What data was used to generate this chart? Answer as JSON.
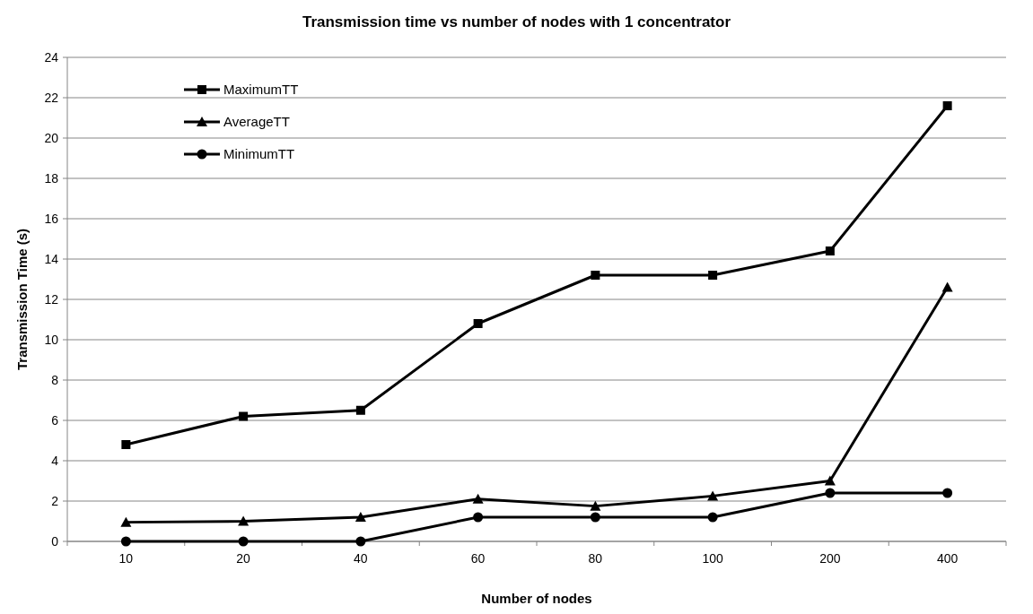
{
  "chart_data": {
    "type": "line",
    "title": "Transmission time vs number of nodes with 1 concentrator",
    "xlabel": "Number of nodes",
    "ylabel": "Transmission Time (s)",
    "categories": [
      "10",
      "20",
      "40",
      "60",
      "80",
      "100",
      "200",
      "400"
    ],
    "series": [
      {
        "name": "MaximumTT",
        "color": "#000000",
        "marker": "square",
        "values": [
          4.8,
          6.2,
          6.5,
          10.8,
          13.2,
          13.2,
          14.4,
          21.6
        ]
      },
      {
        "name": "AverageTT",
        "color": "#000000",
        "marker": "triangle",
        "values": [
          0.95,
          1.0,
          1.2,
          2.1,
          1.75,
          2.25,
          3.0,
          12.6
        ]
      },
      {
        "name": "MinimumTT",
        "color": "#000000",
        "marker": "circle",
        "values": [
          0,
          0,
          0,
          1.2,
          1.2,
          1.2,
          2.4,
          2.4
        ]
      }
    ],
    "ylim": [
      0,
      24
    ],
    "yticks": [
      0,
      2,
      4,
      6,
      8,
      10,
      12,
      14,
      16,
      18,
      20,
      22,
      24
    ],
    "grid": "y",
    "legend": "top left",
    "line_style": "solid"
  }
}
